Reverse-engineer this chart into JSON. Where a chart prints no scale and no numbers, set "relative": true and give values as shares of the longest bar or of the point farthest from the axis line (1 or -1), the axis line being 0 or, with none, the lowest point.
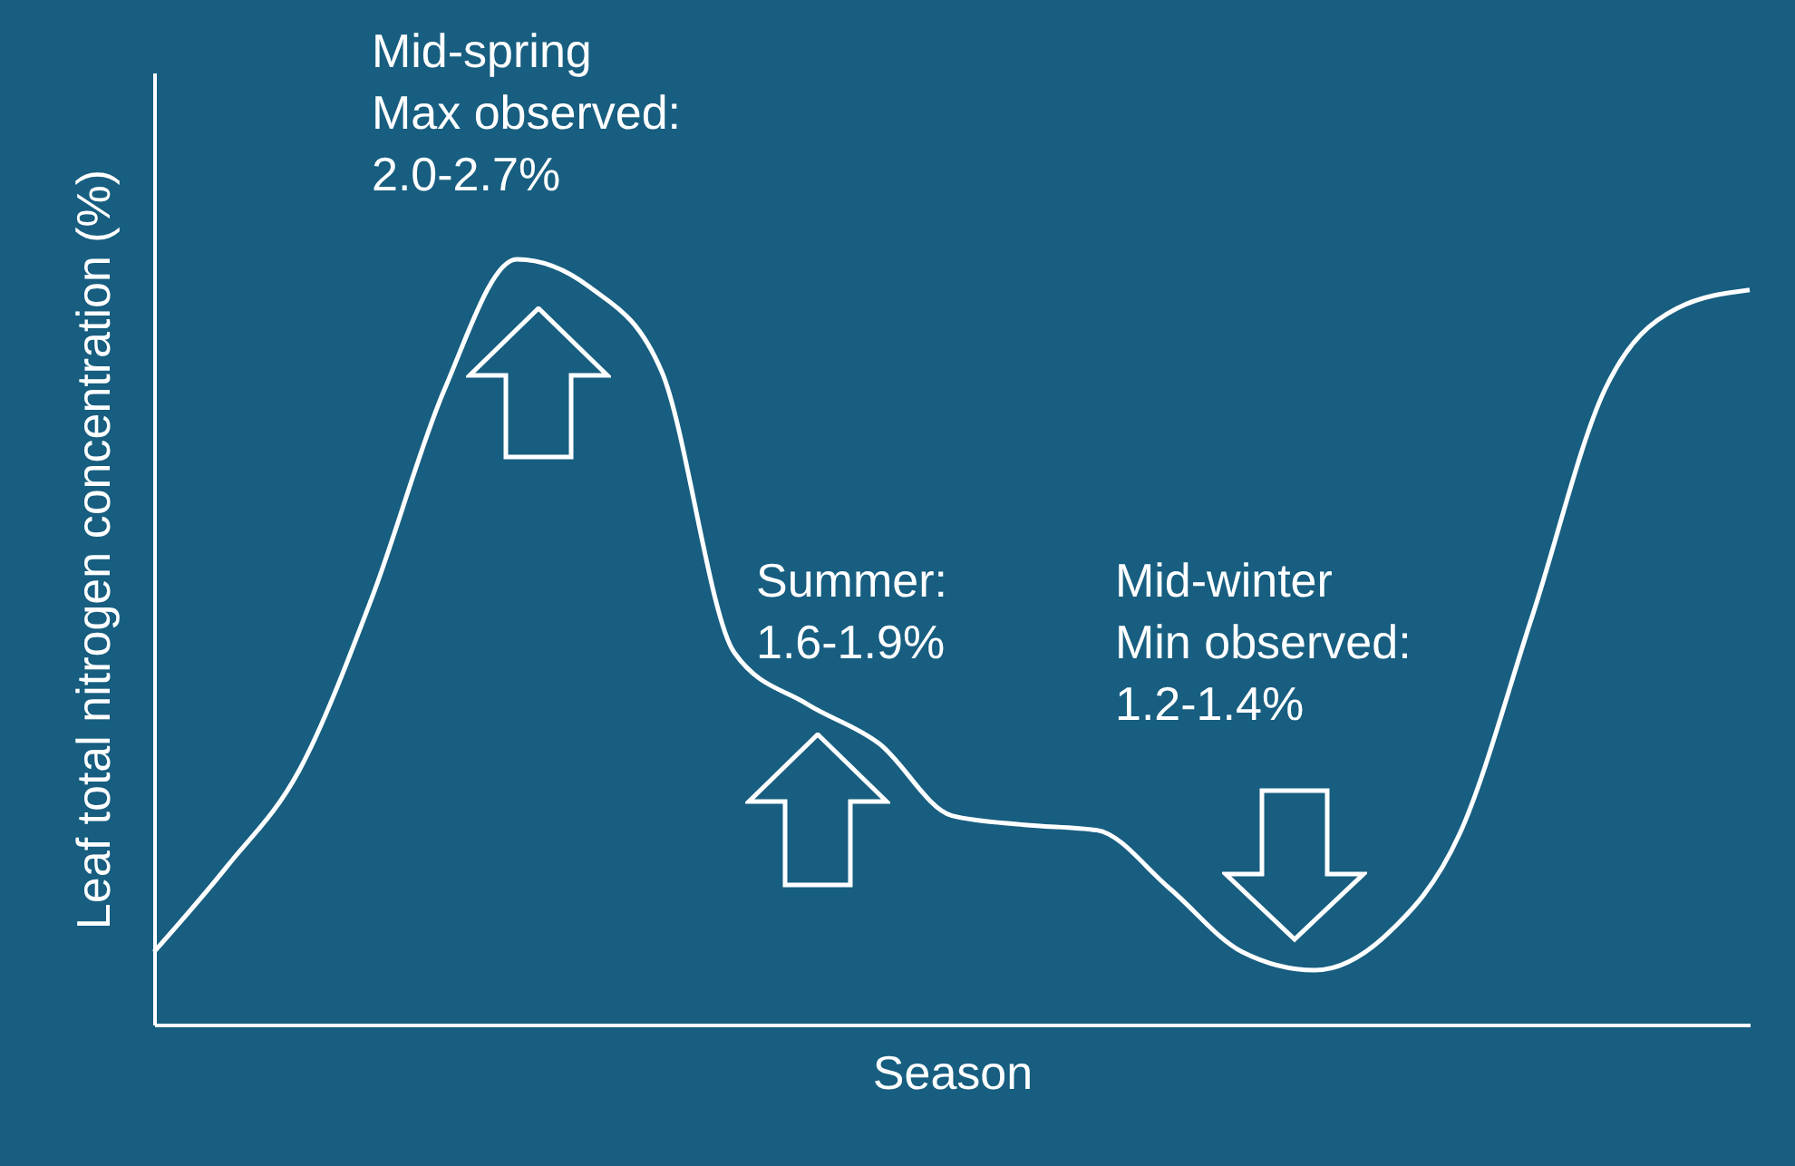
{
  "chart_data": {
    "type": "line",
    "relative": true,
    "xlabel": "Season",
    "ylabel": "Leaf total nitrogen concentration (%)",
    "categories": [
      null,
      null,
      null,
      null,
      null,
      null,
      null,
      null,
      null,
      null,
      null,
      null,
      null,
      null,
      null,
      null,
      null,
      null,
      null,
      null,
      null,
      null,
      null
    ],
    "series": [
      {
        "color": "#ffffff",
        "values": [
          0.095,
          0.206,
          0.332,
          0.557,
          0.829,
          1.0,
          0.964,
          0.853,
          0.486,
          0.419,
          0.367,
          0.273,
          0.261,
          0.254,
          0.178,
          0.095,
          0.071,
          0.118,
          0.249,
          0.533,
          0.829,
          0.936,
          0.96
        ]
      }
    ],
    "annotations": [
      "Mid-spring\nMax observed:\n 2.0-2.7%",
      "Summer:\n1.6-1.9%",
      "Mid-winter\nMin observed:\n1.2-1.4%"
    ],
    "grid": false,
    "marker": "none",
    "line_style": "solid"
  }
}
